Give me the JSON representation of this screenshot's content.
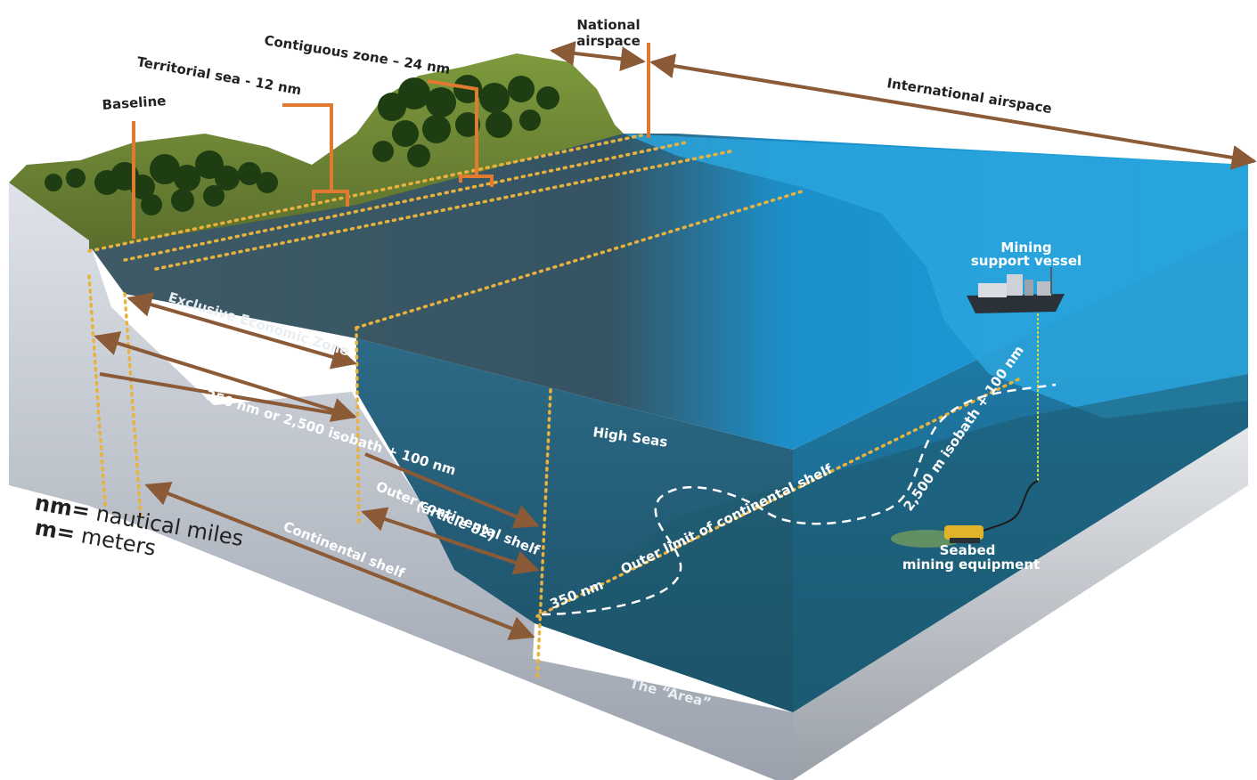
{
  "labels": {
    "baseline": "Baseline",
    "territorial_sea": "Territorial sea - 12 nm",
    "contiguous_zone": "Contiguous zone – 24 nm",
    "national_airspace_1": "National",
    "national_airspace_2": "airspace",
    "international_airspace": "International airspace",
    "eez": "Exclusive Economic Zone",
    "nm200": "200 nm",
    "nm350": "350 nm or 2,500 isobath + 100 nm",
    "outer_shelf_1": "Outer continental shelf",
    "outer_shelf_2": "(article 82)",
    "continental_shelf": "Continental shelf",
    "high_seas": "High Seas",
    "vessel_1": "Mining",
    "vessel_2": "support vessel",
    "outer_limit": "Outer limit of continental shelf",
    "nm350_short": "350 nm",
    "isobath": "2,500 m isobath + 100 nm",
    "equipment_1": "Seabed",
    "equipment_2": "mining equipment",
    "area": "The “Area”"
  },
  "legend": {
    "nm_key": "nm=",
    "nm_value": " nautical miles",
    "m_key": "m=",
    "m_value": " meters"
  },
  "colors": {
    "arrow": "#8b5a36",
    "marker": "#e07a30",
    "dotted": "#e8b23c",
    "dashed": "#ffffff",
    "ocean_shallow": "#2da6dc",
    "ocean_deep": "#1a4f6b",
    "land": "#6e8a34",
    "trees": "#1e3d12",
    "cliff": "#c6cbd4"
  }
}
